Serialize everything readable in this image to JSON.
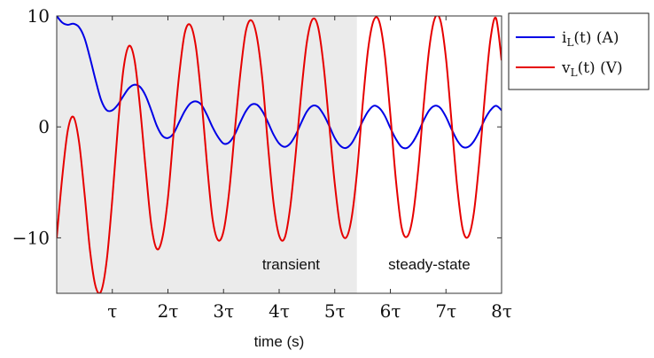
{
  "chart_data": {
    "type": "line",
    "xlabel": "time (s)",
    "xlim": [
      0,
      8
    ],
    "ylim": [
      -15,
      10
    ],
    "x_ticks": [
      {
        "value": 1,
        "label": "τ"
      },
      {
        "value": 2,
        "label": "2τ"
      },
      {
        "value": 3,
        "label": "3τ"
      },
      {
        "value": 4,
        "label": "4τ"
      },
      {
        "value": 5,
        "label": "5τ"
      },
      {
        "value": 6,
        "label": "6τ"
      },
      {
        "value": 7,
        "label": "7τ"
      },
      {
        "value": 8,
        "label": "8τ"
      }
    ],
    "y_ticks": [
      {
        "value": 10,
        "label": "10"
      },
      {
        "value": 0,
        "label": "0"
      },
      {
        "value": -10,
        "label": "−10"
      }
    ],
    "regions": [
      {
        "label": "transient",
        "x_start": 0,
        "x_end": 5.4,
        "fill": "#ebebeb"
      },
      {
        "label": "steady-state",
        "x_start": 5.4,
        "x_end": 8,
        "fill": "#ffffff"
      }
    ],
    "legend_position": "outside-right-top",
    "series": [
      {
        "name": "i_L(t) (A)",
        "legend_main": "i",
        "legend_sub": "L",
        "legend_rest": "(t) (A)",
        "color": "#0000e6",
        "x": [
          0,
          0.1,
          0.2,
          0.3,
          0.4,
          0.5,
          0.6,
          0.7,
          0.8,
          0.9,
          1.0,
          1.1,
          1.2,
          1.3,
          1.4,
          1.5,
          1.6,
          1.7,
          1.8,
          1.9,
          2.0,
          2.1,
          2.2,
          2.3,
          2.4,
          2.5,
          2.6,
          2.7,
          2.8,
          2.9,
          3.0,
          3.1,
          3.2,
          3.3,
          3.4,
          3.5,
          3.6,
          3.7,
          3.8,
          3.9,
          4.0,
          4.1,
          4.2,
          4.3,
          4.4,
          4.5,
          4.6,
          4.7,
          4.8,
          4.9,
          5.0,
          5.1,
          5.2,
          5.3,
          5.4,
          5.5,
          5.6,
          5.7,
          5.8,
          5.9,
          6.0,
          6.1,
          6.2,
          6.3,
          6.4,
          6.5,
          6.6,
          6.7,
          6.8,
          6.9,
          7.0,
          7.1,
          7.2,
          7.3,
          7.4,
          7.5,
          7.6,
          7.7,
          7.8,
          7.9,
          8.0
        ],
        "values": [
          10.0,
          9.4,
          9.2,
          9.3,
          9.0,
          8.0,
          6.2,
          4.2,
          2.4,
          1.5,
          1.5,
          2.0,
          2.8,
          3.5,
          3.8,
          3.6,
          2.8,
          1.5,
          0.1,
          -0.8,
          -1.0,
          -0.6,
          0.4,
          1.4,
          2.1,
          2.3,
          2.0,
          1.1,
          0.0,
          -0.9,
          -1.5,
          -1.4,
          -0.7,
          0.4,
          1.4,
          2.0,
          2.0,
          1.4,
          0.4,
          -0.7,
          -1.5,
          -1.8,
          -1.5,
          -0.7,
          0.4,
          1.4,
          1.9,
          1.8,
          1.1,
          0.1,
          -1.0,
          -1.7,
          -1.9,
          -1.5,
          -0.6,
          0.5,
          1.4,
          1.9,
          1.7,
          1.0,
          -0.1,
          -1.1,
          -1.8,
          -1.9,
          -1.4,
          -0.5,
          0.6,
          1.5,
          1.9,
          1.7,
          0.9,
          -0.2,
          -1.2,
          -1.8,
          -1.8,
          -1.3,
          -0.4,
          0.7,
          1.5,
          1.9,
          1.5
        ]
      },
      {
        "name": "v_L(t) (V)",
        "legend_main": "v",
        "legend_sub": "L",
        "legend_rest": "(t) (V)",
        "color": "#e60000",
        "x": [
          0,
          0.1,
          0.2,
          0.3,
          0.4,
          0.5,
          0.6,
          0.7,
          0.8,
          0.9,
          1.0,
          1.1,
          1.2,
          1.3,
          1.4,
          1.5,
          1.6,
          1.7,
          1.8,
          1.9,
          2.0,
          2.1,
          2.2,
          2.3,
          2.4,
          2.5,
          2.6,
          2.7,
          2.8,
          2.9,
          3.0,
          3.1,
          3.2,
          3.3,
          3.4,
          3.5,
          3.6,
          3.7,
          3.8,
          3.9,
          4.0,
          4.1,
          4.2,
          4.3,
          4.4,
          4.5,
          4.6,
          4.7,
          4.8,
          4.9,
          5.0,
          5.1,
          5.2,
          5.3,
          5.4,
          5.5,
          5.6,
          5.7,
          5.8,
          5.9,
          6.0,
          6.1,
          6.2,
          6.3,
          6.4,
          6.5,
          6.6,
          6.7,
          6.8,
          6.9,
          7.0,
          7.1,
          7.2,
          7.3,
          7.4,
          7.5,
          7.6,
          7.7,
          7.8,
          7.9,
          8.0
        ],
        "values": [
          -10.0,
          -4.5,
          -0.3,
          0.9,
          -1.3,
          -6.0,
          -11.2,
          -14.4,
          -14.8,
          -12.0,
          -6.5,
          0.0,
          5.2,
          7.3,
          6.0,
          1.7,
          -3.8,
          -8.8,
          -11.0,
          -10.0,
          -6.4,
          -0.7,
          4.6,
          8.4,
          9.2,
          7.3,
          2.7,
          -3.2,
          -8.2,
          -10.2,
          -9.4,
          -5.9,
          -0.5,
          4.7,
          8.6,
          9.6,
          8.1,
          4.2,
          -1.7,
          -6.9,
          -9.8,
          -10.0,
          -7.2,
          -2.3,
          3.2,
          7.7,
          9.7,
          9.0,
          5.5,
          0.2,
          -5.1,
          -9.0,
          -10.0,
          -8.3,
          -4.1,
          1.9,
          7.0,
          9.6,
          9.5,
          6.5,
          1.1,
          -4.8,
          -9.0,
          -9.9,
          -8.2,
          -3.9,
          2.0,
          7.1,
          9.8,
          9.6,
          6.2,
          0.5,
          -5.3,
          -9.2,
          -9.9,
          -7.8,
          -3.1,
          2.8,
          7.9,
          9.8,
          6.0
        ]
      }
    ]
  }
}
